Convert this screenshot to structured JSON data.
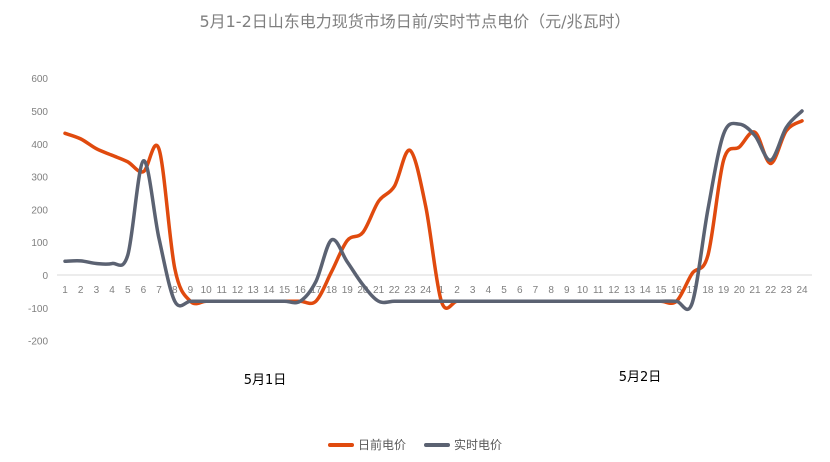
{
  "chart_data": {
    "type": "line",
    "title": "5月1-2日山东电力现货市场日前/实时节点电价（元/兆瓦时）",
    "categories": [
      "1",
      "2",
      "3",
      "4",
      "5",
      "6",
      "7",
      "8",
      "9",
      "10",
      "11",
      "12",
      "13",
      "14",
      "15",
      "16",
      "17",
      "18",
      "19",
      "20",
      "21",
      "22",
      "23",
      "24",
      "1",
      "2",
      "3",
      "4",
      "5",
      "6",
      "7",
      "8",
      "9",
      "10",
      "11",
      "12",
      "13",
      "14",
      "15",
      "16",
      "17",
      "18",
      "19",
      "20",
      "21",
      "22",
      "23",
      "24"
    ],
    "group_labels": [
      "5月1日",
      "5月2日"
    ],
    "ylim": [
      -200,
      600
    ],
    "yticks": [
      -200,
      -100,
      0,
      100,
      200,
      300,
      400,
      500,
      600
    ],
    "grid": false,
    "legend": "bottom",
    "series": [
      {
        "name": "日前电价",
        "color": "#e04a0e",
        "values": [
          432,
          415,
          385,
          365,
          345,
          315,
          383,
          20,
          -80,
          -80,
          -80,
          -80,
          -80,
          -80,
          -80,
          -80,
          -80,
          10,
          105,
          130,
          225,
          270,
          380,
          210,
          -80,
          -80,
          -80,
          -80,
          -80,
          -80,
          -80,
          -80,
          -80,
          -80,
          -80,
          -80,
          -80,
          -80,
          -80,
          -80,
          5,
          60,
          350,
          390,
          435,
          340,
          440,
          470
        ]
      },
      {
        "name": "实时电价",
        "color": "#5b6272",
        "values": [
          42,
          43,
          35,
          35,
          60,
          348,
          110,
          -80,
          -80,
          -80,
          -80,
          -80,
          -80,
          -80,
          -80,
          -80,
          -20,
          107,
          40,
          -30,
          -80,
          -80,
          -80,
          -80,
          -80,
          -80,
          -80,
          -80,
          -80,
          -80,
          -80,
          -80,
          -80,
          -80,
          -80,
          -80,
          -80,
          -80,
          -80,
          -80,
          -85,
          200,
          430,
          460,
          425,
          350,
          450,
          500
        ]
      }
    ]
  }
}
